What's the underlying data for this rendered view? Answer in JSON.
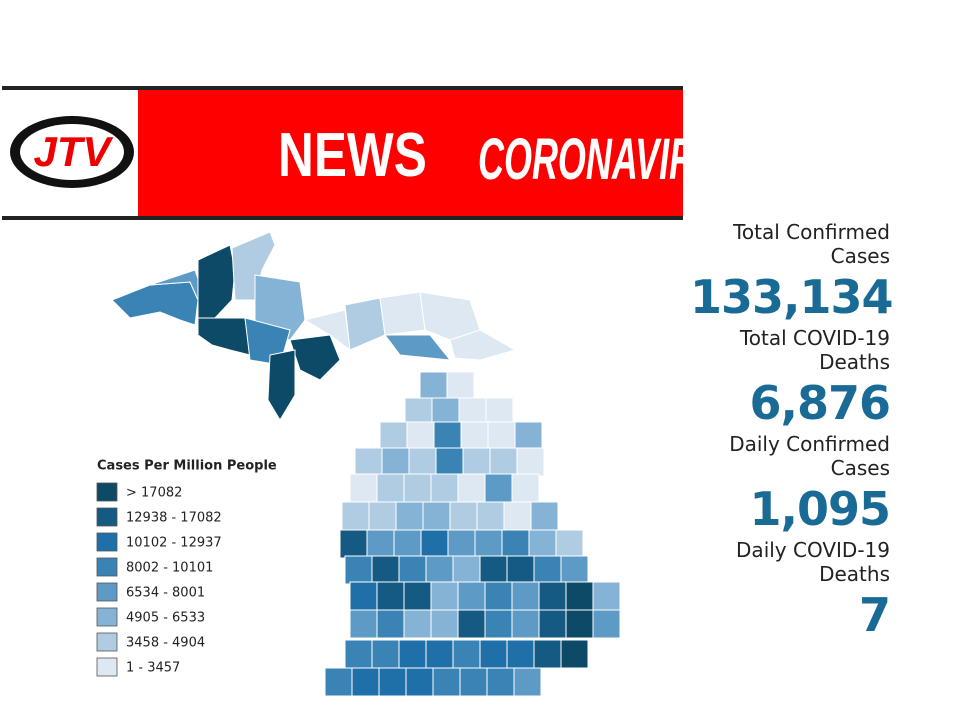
{
  "header": {
    "logo": "JTV",
    "news": "NEWS",
    "topic": "CORONAVIRUS"
  },
  "legend": {
    "title": "Cases Per Million People",
    "items": [
      {
        "label": "> 17082",
        "color": "#0d4a68"
      },
      {
        "label": "12938 - 17082",
        "color": "#145a82"
      },
      {
        "label": "10102 - 12937",
        "color": "#1f6fa8"
      },
      {
        "label": "8002 - 10101",
        "color": "#3a84b5"
      },
      {
        "label": "6534 - 8001",
        "color": "#5d9ac6"
      },
      {
        "label": "4905 - 6533",
        "color": "#85b3d6"
      },
      {
        "label": "3458 - 4904",
        "color": "#b0cce3"
      },
      {
        "label": "1 - 3457",
        "color": "#dde8f2"
      }
    ]
  },
  "stats": [
    {
      "label": "Total Confirmed Cases",
      "value": "133,134"
    },
    {
      "label": "Total COVID-19 Deaths",
      "value": "6,876"
    },
    {
      "label": "Daily Confirmed Cases",
      "value": "1,095"
    },
    {
      "label": "Daily COVID-19 Deaths",
      "value": "7"
    }
  ]
}
